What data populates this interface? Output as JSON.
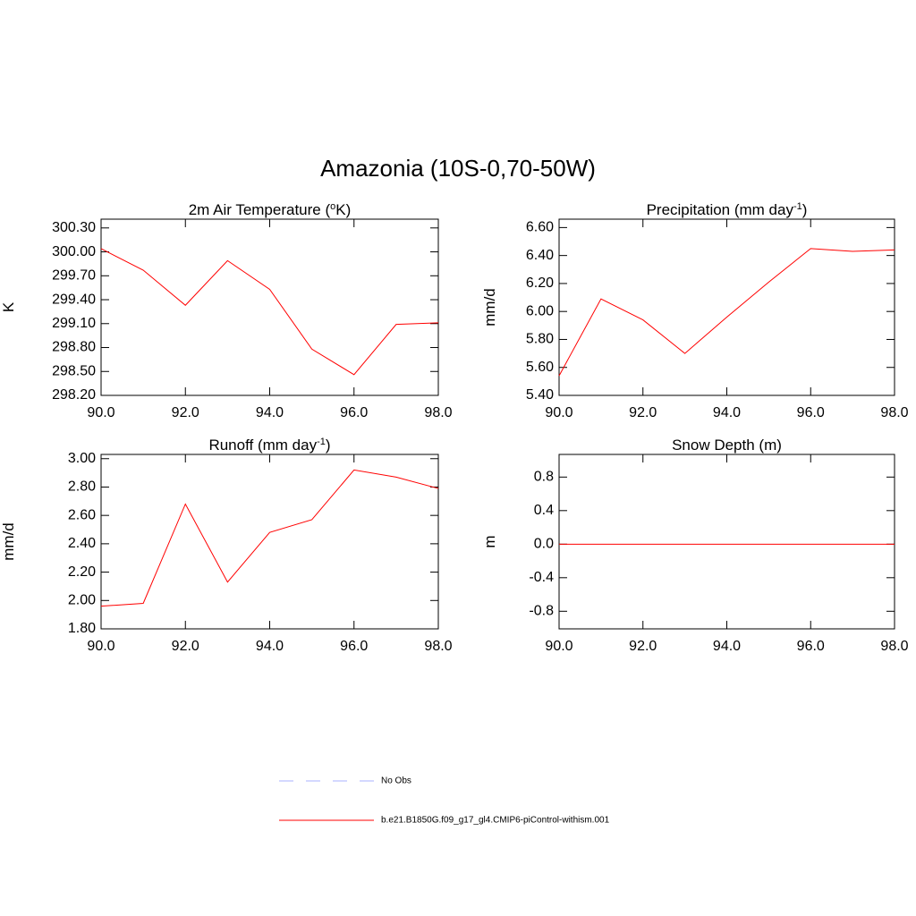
{
  "title": "Amazonia (10S-0,70-50W)",
  "legend": [
    {
      "name": "No Obs",
      "color": "#aab0ff",
      "dashed": true
    },
    {
      "name": "b.e21.B1850G.f09_g17_gl4.CMIP6-piControl-withism.001",
      "color": "#ff0000",
      "dashed": false
    }
  ],
  "chart_data": [
    {
      "type": "line",
      "title_parts": [
        "2m Air Temperature (",
        "o",
        "K)"
      ],
      "y_label": "K",
      "x": [
        90,
        91,
        92,
        93,
        94,
        95,
        96,
        97,
        98
      ],
      "values": [
        300.04,
        299.77,
        299.33,
        299.89,
        299.53,
        298.78,
        298.46,
        299.09,
        299.11
      ],
      "color": "#ff0000",
      "xlim": [
        90,
        98
      ],
      "xticks": [
        {
          "value": 90,
          "label": "90.0"
        },
        {
          "value": 92,
          "label": "92.0"
        },
        {
          "value": 94,
          "label": "94.0"
        },
        {
          "value": 96,
          "label": "96.0"
        },
        {
          "value": 98,
          "label": "98.0"
        }
      ],
      "ylim": [
        298.2,
        300.41
      ],
      "yticks": [
        {
          "value": 298.2,
          "label": "298.20"
        },
        {
          "value": 298.5,
          "label": "298.50"
        },
        {
          "value": 298.8,
          "label": "298.80"
        },
        {
          "value": 299.1,
          "label": "299.10"
        },
        {
          "value": 299.4,
          "label": "299.40"
        },
        {
          "value": 299.7,
          "label": "299.70"
        },
        {
          "value": 300,
          "label": "300.00"
        },
        {
          "value": 300.3,
          "label": "300.30"
        }
      ]
    },
    {
      "type": "line",
      "title_parts": [
        "Precipitation (mm day",
        "-1",
        ")"
      ],
      "y_label": "mm/d",
      "x": [
        90,
        91,
        92,
        93,
        94,
        95,
        96,
        97,
        98
      ],
      "values": [
        5.54,
        6.09,
        5.94,
        5.7,
        5.96,
        6.21,
        6.45,
        6.43,
        6.44
      ],
      "color": "#ff0000",
      "xlim": [
        90,
        98
      ],
      "xticks": [
        {
          "value": 90,
          "label": "90.0"
        },
        {
          "value": 92,
          "label": "92.0"
        },
        {
          "value": 94,
          "label": "94.0"
        },
        {
          "value": 96,
          "label": "96.0"
        },
        {
          "value": 98,
          "label": "98.0"
        }
      ],
      "ylim": [
        5.4,
        6.66
      ],
      "yticks": [
        {
          "value": 5.4,
          "label": "5.40"
        },
        {
          "value": 5.6,
          "label": "5.60"
        },
        {
          "value": 5.8,
          "label": "5.80"
        },
        {
          "value": 6,
          "label": "6.00"
        },
        {
          "value": 6.2,
          "label": "6.20"
        },
        {
          "value": 6.4,
          "label": "6.40"
        },
        {
          "value": 6.6,
          "label": "6.60"
        }
      ]
    },
    {
      "type": "line",
      "title_parts": [
        "Runoff (mm day",
        "-1",
        ")"
      ],
      "y_label": "mm/d",
      "x": [
        90,
        91,
        92,
        93,
        94,
        95,
        96,
        97,
        98
      ],
      "values": [
        1.96,
        1.98,
        2.68,
        2.13,
        2.48,
        2.57,
        2.92,
        2.87,
        2.79
      ],
      "color": "#ff0000",
      "xlim": [
        90,
        98
      ],
      "xticks": [
        {
          "value": 90,
          "label": "90.0"
        },
        {
          "value": 92,
          "label": "92.0"
        },
        {
          "value": 94,
          "label": "94.0"
        },
        {
          "value": 96,
          "label": "96.0"
        },
        {
          "value": 98,
          "label": "98.0"
        }
      ],
      "ylim": [
        1.8,
        3.03
      ],
      "yticks": [
        {
          "value": 1.8,
          "label": "1.80"
        },
        {
          "value": 2,
          "label": "2.00"
        },
        {
          "value": 2.2,
          "label": "2.20"
        },
        {
          "value": 2.4,
          "label": "2.40"
        },
        {
          "value": 2.6,
          "label": "2.60"
        },
        {
          "value": 2.8,
          "label": "2.80"
        },
        {
          "value": 3,
          "label": "3.00"
        }
      ]
    },
    {
      "type": "line",
      "title_parts": [
        "Snow Depth (m)"
      ],
      "y_label": "m",
      "x": [
        90,
        91,
        92,
        93,
        94,
        95,
        96,
        97,
        98
      ],
      "values": [
        0,
        0,
        0,
        0,
        0,
        0,
        0,
        0,
        0
      ],
      "color": "#ff0000",
      "xlim": [
        90,
        98
      ],
      "xticks": [
        {
          "value": 90,
          "label": "90.0"
        },
        {
          "value": 92,
          "label": "92.0"
        },
        {
          "value": 94,
          "label": "94.0"
        },
        {
          "value": 96,
          "label": "96.0"
        },
        {
          "value": 98,
          "label": "98.0"
        }
      ],
      "ylim": [
        -1.01,
        1.07
      ],
      "yticks": [
        -0.8,
        -0.4,
        {
          "value": 0,
          "label": "0.0"
        },
        0.4,
        0.8
      ]
    }
  ]
}
